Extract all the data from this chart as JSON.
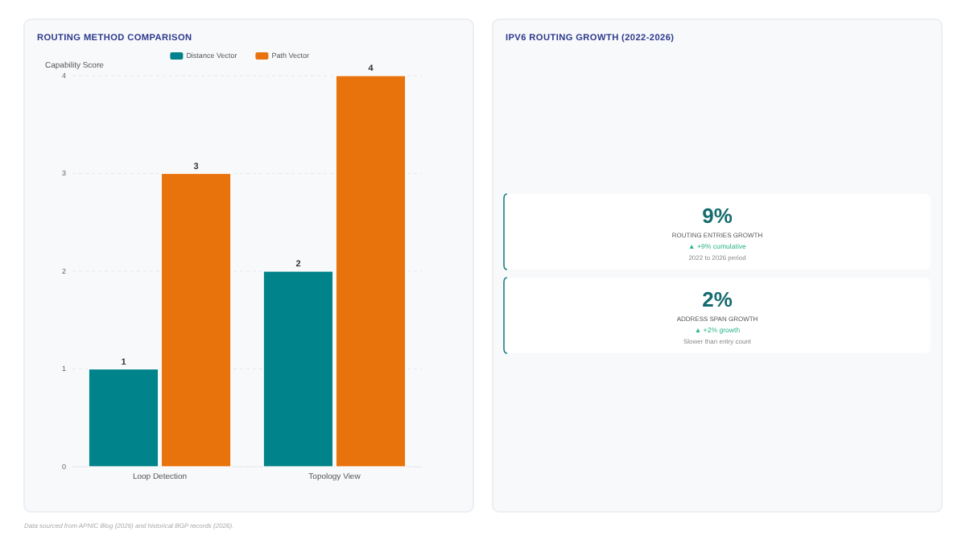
{
  "chart_data": [
    {
      "type": "bar",
      "title": "ROUTING METHOD COMPARISON",
      "ylabel": "Capability Score",
      "categories": [
        "Loop Detection",
        "Topology View"
      ],
      "series": [
        {
          "name": "Distance Vector",
          "color": "#00838a",
          "values": [
            1,
            2
          ]
        },
        {
          "name": "Path Vector",
          "color": "#e8720c",
          "values": [
            3,
            4
          ]
        }
      ],
      "ylim": [
        0,
        4
      ],
      "yticks": [
        0,
        1,
        2,
        3,
        4
      ],
      "grid": "y",
      "legend": "top",
      "data_labels": true,
      "annotations": [
        "Data sourced from APNIC Blog (2026) and historical BGP records (2026)."
      ]
    },
    {
      "type": "other",
      "title": "IPV6 ROUTING GROWTH (2022-2026)",
      "annotations": [
        "9%",
        "ROUTING ENTRIES GROWTH",
        "▲ +9% cumulative",
        "2022 to 2026 period",
        "2%",
        "ADDRESS SPAN GROWTH",
        "▲ +2% growth",
        "Slower than entry count"
      ]
    }
  ]
}
